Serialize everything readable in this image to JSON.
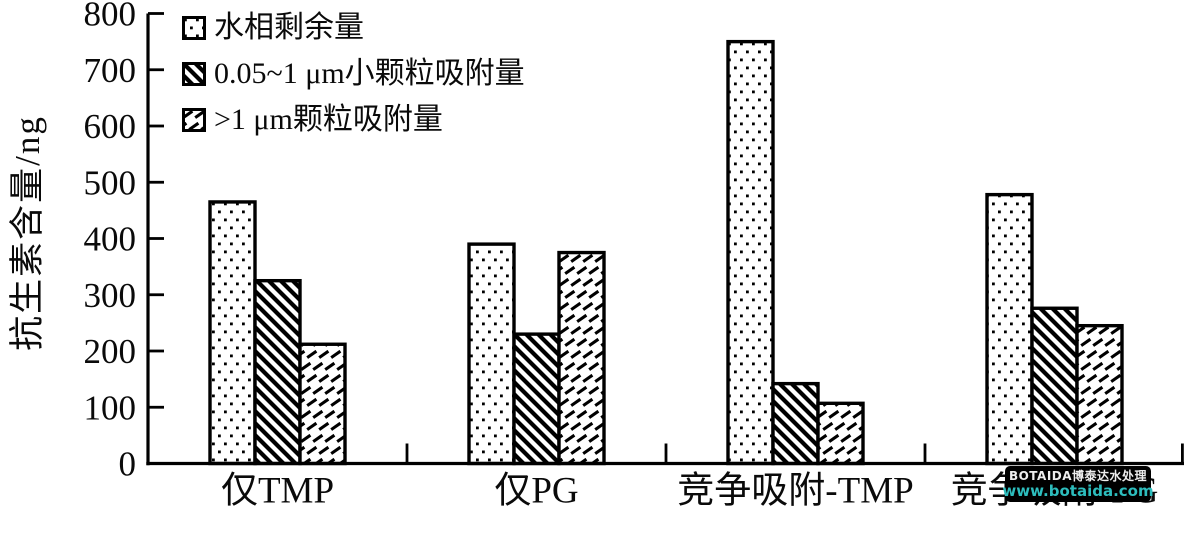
{
  "chart_data": {
    "type": "bar",
    "title": "",
    "xlabel": "",
    "ylabel": "抗生素含量/ng",
    "ylim": [
      0,
      800
    ],
    "yticks": [
      0,
      100,
      200,
      300,
      400,
      500,
      600,
      700,
      800
    ],
    "grid": false,
    "legend_position": "top-left-inside",
    "categories": [
      "仅TMP",
      "仅PG",
      "竞争吸附-TMP",
      "竞争吸附-PG"
    ],
    "legend": [
      "水相剩余量",
      "0.05~1 μm小颗粒吸附量",
      ">1 μm颗粒吸附量"
    ],
    "series": [
      {
        "name": "水相剩余量",
        "hatch": "dots",
        "values": [
          465,
          390,
          750,
          478
        ]
      },
      {
        "name": "0.05~1 μm小颗粒吸附量",
        "hatch": "dense-backslash",
        "values": [
          325,
          230,
          142,
          276
        ]
      },
      {
        "name": ">1 μm颗粒吸附量",
        "hatch": "sparse-slash-dashes",
        "values": [
          212,
          375,
          107,
          245
        ]
      }
    ],
    "bar_fill_color": "#ffffff",
    "line_color": "#000000"
  },
  "watermark": {
    "line1": "BOTAIDA博泰达水处理",
    "line2": "www.botaida.com",
    "bg_color": "#000000",
    "line1_color": "#ededed",
    "line2_color": "#2dbdbd"
  }
}
